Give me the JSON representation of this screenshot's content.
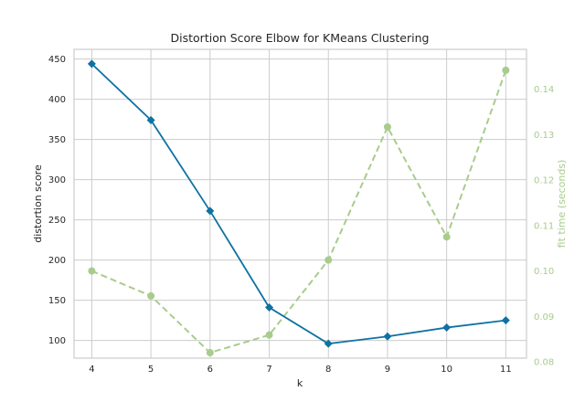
{
  "chart_data": {
    "type": "line",
    "title": "Distortion Score Elbow for KMeans Clustering",
    "xlabel": "k",
    "ylabel": "distortion score",
    "y2label": "fit time (seconds)",
    "x": [
      4,
      5,
      6,
      7,
      8,
      9,
      10,
      11
    ],
    "series": [
      {
        "name": "distortion score",
        "axis": "left",
        "color": "#0e72a3",
        "marker": "diamond",
        "line_style": "solid",
        "values": [
          444,
          374,
          261,
          141,
          96,
          105,
          116,
          125
        ]
      },
      {
        "name": "fit time (seconds)",
        "axis": "right",
        "color": "#a8cc8c",
        "marker": "circle",
        "line_style": "dashed",
        "values": [
          0.1,
          0.0945,
          0.082,
          0.0859,
          0.1024,
          0.1317,
          0.1075,
          0.1442
        ]
      }
    ],
    "x_ticks": [
      "4",
      "5",
      "6",
      "7",
      "8",
      "9",
      "10",
      "11"
    ],
    "y_ticks": [
      "100",
      "150",
      "200",
      "250",
      "300",
      "350",
      "400",
      "450"
    ],
    "y2_ticks": [
      "0.08",
      "0.09",
      "0.10",
      "0.11",
      "0.12",
      "0.13",
      "0.14"
    ],
    "ylim": [
      78,
      462
    ],
    "y2lim": [
      0.0808,
      0.1488
    ],
    "xlim": [
      3.7,
      11.35
    ],
    "grid": true,
    "legend": null
  },
  "colors": {
    "primary": "#0e72a3",
    "secondary": "#a8cc8c",
    "grid": "#cccccc",
    "text": "#333333"
  }
}
